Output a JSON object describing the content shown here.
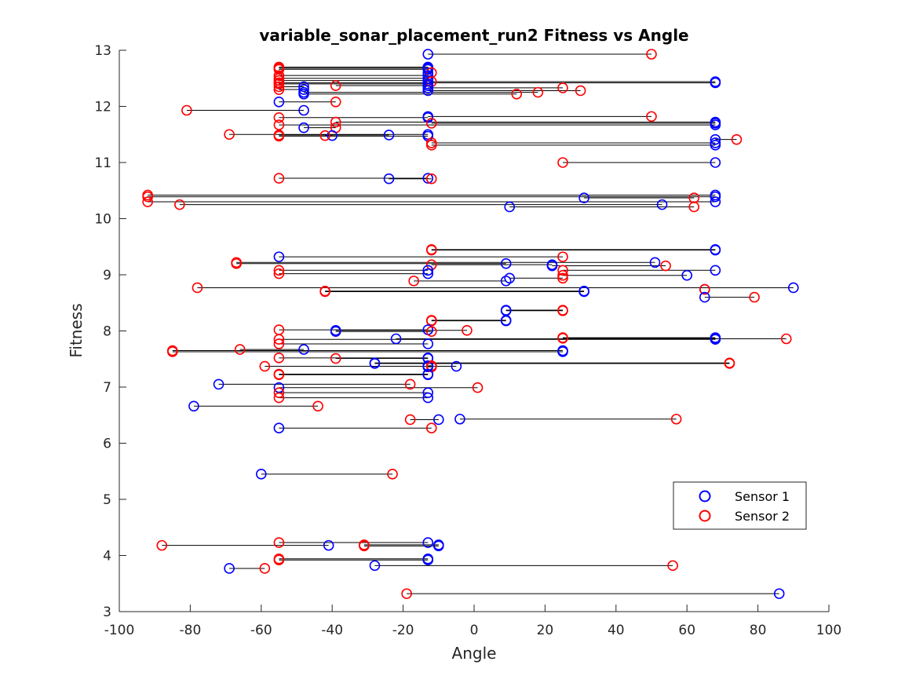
{
  "chart_data": {
    "type": "scatter",
    "title": "variable_sonar_placement_run2 Fitness vs Angle",
    "xlabel": "Angle",
    "ylabel": "Fitness",
    "xlim": [
      -100,
      100
    ],
    "ylim": [
      3,
      13
    ],
    "xticks": [
      "-100",
      "-80",
      "-60",
      "-40",
      "-20",
      "0",
      "20",
      "40",
      "60",
      "80",
      "100"
    ],
    "yticks": [
      "3",
      "4",
      "5",
      "6",
      "7",
      "8",
      "9",
      "10",
      "11",
      "12",
      "13"
    ],
    "legend_position": "lower-right",
    "grid": false,
    "series": [
      {
        "name": "Sensor 1",
        "color": "#0000ff"
      },
      {
        "name": "Sensor 2",
        "color": "#ff0000"
      }
    ],
    "pairs": [
      {
        "fitness": 12.93,
        "sensor1": -13,
        "sensor2": 50
      },
      {
        "fitness": 12.7,
        "sensor1": -13,
        "sensor2": -55
      },
      {
        "fitness": 12.68,
        "sensor1": -13,
        "sensor2": -55
      },
      {
        "fitness": 12.66,
        "sensor1": -13,
        "sensor2": -55
      },
      {
        "fitness": 12.6,
        "sensor1": -13,
        "sensor2": -12
      },
      {
        "fitness": 12.55,
        "sensor1": -13,
        "sensor2": -55
      },
      {
        "fitness": 12.5,
        "sensor1": -13,
        "sensor2": -55
      },
      {
        "fitness": 12.46,
        "sensor1": -13,
        "sensor2": -55
      },
      {
        "fitness": 12.44,
        "sensor1": 68,
        "sensor2": -12
      },
      {
        "fitness": 12.42,
        "sensor1": 68,
        "sensor2": -55
      },
      {
        "fitness": 12.4,
        "sensor1": -13,
        "sensor2": -55
      },
      {
        "fitness": 12.37,
        "sensor1": -13,
        "sensor2": -39
      },
      {
        "fitness": 12.35,
        "sensor1": -48,
        "sensor2": -55
      },
      {
        "fitness": 12.33,
        "sensor1": -13,
        "sensor2": 25
      },
      {
        "fitness": 12.3,
        "sensor1": -48,
        "sensor2": -55
      },
      {
        "fitness": 12.28,
        "sensor1": -13,
        "sensor2": 30
      },
      {
        "fitness": 12.25,
        "sensor1": -48,
        "sensor2": 18
      },
      {
        "fitness": 12.22,
        "sensor1": -48,
        "sensor2": 12
      },
      {
        "fitness": 12.08,
        "sensor1": -55,
        "sensor2": -39
      },
      {
        "fitness": 11.93,
        "sensor1": -48,
        "sensor2": -81
      },
      {
        "fitness": 11.82,
        "sensor1": -13,
        "sensor2": 50
      },
      {
        "fitness": 11.8,
        "sensor1": -13,
        "sensor2": -55
      },
      {
        "fitness": 11.72,
        "sensor1": 68,
        "sensor2": -39
      },
      {
        "fitness": 11.7,
        "sensor1": 68,
        "sensor2": -12
      },
      {
        "fitness": 11.67,
        "sensor1": 68,
        "sensor2": -55
      },
      {
        "fitness": 11.62,
        "sensor1": -48,
        "sensor2": -39
      },
      {
        "fitness": 11.5,
        "sensor1": -13,
        "sensor2": -69
      },
      {
        "fitness": 11.49,
        "sensor1": -24,
        "sensor2": -55
      },
      {
        "fitness": 11.48,
        "sensor1": -40,
        "sensor2": -42
      },
      {
        "fitness": 11.47,
        "sensor1": -13,
        "sensor2": -55
      },
      {
        "fitness": 11.41,
        "sensor1": 68,
        "sensor2": 74
      },
      {
        "fitness": 11.35,
        "sensor1": 68,
        "sensor2": -12
      },
      {
        "fitness": 11.31,
        "sensor1": 68,
        "sensor2": -12
      },
      {
        "fitness": 11.0,
        "sensor1": 68,
        "sensor2": 25
      },
      {
        "fitness": 10.72,
        "sensor1": -13,
        "sensor2": -55
      },
      {
        "fitness": 10.71,
        "sensor1": -24,
        "sensor2": -12
      },
      {
        "fitness": 10.42,
        "sensor1": 68,
        "sensor2": -92
      },
      {
        "fitness": 10.39,
        "sensor1": 68,
        "sensor2": -92
      },
      {
        "fitness": 10.37,
        "sensor1": 31,
        "sensor2": 62
      },
      {
        "fitness": 10.3,
        "sensor1": 68,
        "sensor2": -92
      },
      {
        "fitness": 10.25,
        "sensor1": 53,
        "sensor2": -83
      },
      {
        "fitness": 10.21,
        "sensor1": 10,
        "sensor2": 62
      },
      {
        "fitness": 9.45,
        "sensor1": 68,
        "sensor2": -12
      },
      {
        "fitness": 9.44,
        "sensor1": 68,
        "sensor2": -12
      },
      {
        "fitness": 9.32,
        "sensor1": -55,
        "sensor2": 25
      },
      {
        "fitness": 9.22,
        "sensor1": 51,
        "sensor2": -67
      },
      {
        "fitness": 9.2,
        "sensor1": 9,
        "sensor2": -67
      },
      {
        "fitness": 9.18,
        "sensor1": 22,
        "sensor2": -12
      },
      {
        "fitness": 9.16,
        "sensor1": 22,
        "sensor2": 54
      },
      {
        "fitness": 9.08,
        "sensor1": 68,
        "sensor2": 25
      },
      {
        "fitness": 9.08,
        "sensor1": -13,
        "sensor2": -55
      },
      {
        "fitness": 9.02,
        "sensor1": -13,
        "sensor2": -55
      },
      {
        "fitness": 8.99,
        "sensor1": 60,
        "sensor2": 25
      },
      {
        "fitness": 8.94,
        "sensor1": 10,
        "sensor2": 25
      },
      {
        "fitness": 8.89,
        "sensor1": 9,
        "sensor2": -17
      },
      {
        "fitness": 8.77,
        "sensor1": 90,
        "sensor2": -78
      },
      {
        "fitness": 8.74,
        "sensor1": 65,
        "sensor2": 65
      },
      {
        "fitness": 8.71,
        "sensor1": 31,
        "sensor2": -42
      },
      {
        "fitness": 8.7,
        "sensor1": 31,
        "sensor2": -42
      },
      {
        "fitness": 8.6,
        "sensor1": 65,
        "sensor2": 79
      },
      {
        "fitness": 8.37,
        "sensor1": 9,
        "sensor2": 25
      },
      {
        "fitness": 8.36,
        "sensor1": 9,
        "sensor2": 25
      },
      {
        "fitness": 8.19,
        "sensor1": 9,
        "sensor2": -12
      },
      {
        "fitness": 8.18,
        "sensor1": 9,
        "sensor2": -12
      },
      {
        "fitness": 8.02,
        "sensor1": -13,
        "sensor2": -55
      },
      {
        "fitness": 8.01,
        "sensor1": -39,
        "sensor2": -2
      },
      {
        "fitness": 7.99,
        "sensor1": -39,
        "sensor2": -12
      },
      {
        "fitness": 7.88,
        "sensor1": 68,
        "sensor2": 25
      },
      {
        "fitness": 7.87,
        "sensor1": 68,
        "sensor2": 25
      },
      {
        "fitness": 7.86,
        "sensor1": -22,
        "sensor2": 88
      },
      {
        "fitness": 7.85,
        "sensor1": 68,
        "sensor2": -55
      },
      {
        "fitness": 7.77,
        "sensor1": -13,
        "sensor2": -55
      },
      {
        "fitness": 7.67,
        "sensor1": -48,
        "sensor2": -66
      },
      {
        "fitness": 7.65,
        "sensor1": 25,
        "sensor2": -85
      },
      {
        "fitness": 7.63,
        "sensor1": 25,
        "sensor2": -85
      },
      {
        "fitness": 7.52,
        "sensor1": -13,
        "sensor2": -55
      },
      {
        "fitness": 7.51,
        "sensor1": -13,
        "sensor2": -39
      },
      {
        "fitness": 7.43,
        "sensor1": -28,
        "sensor2": 72
      },
      {
        "fitness": 7.42,
        "sensor1": -28,
        "sensor2": 72
      },
      {
        "fitness": 7.38,
        "sensor1": -13,
        "sensor2": -12
      },
      {
        "fitness": 7.37,
        "sensor1": -5,
        "sensor2": -59
      },
      {
        "fitness": 7.36,
        "sensor1": -13,
        "sensor2": -12
      },
      {
        "fitness": 7.23,
        "sensor1": -13,
        "sensor2": -55
      },
      {
        "fitness": 7.22,
        "sensor1": -13,
        "sensor2": -55
      },
      {
        "fitness": 7.05,
        "sensor1": -72,
        "sensor2": -18
      },
      {
        "fitness": 6.99,
        "sensor1": -55,
        "sensor2": 1
      },
      {
        "fitness": 6.9,
        "sensor1": -13,
        "sensor2": -55
      },
      {
        "fitness": 6.81,
        "sensor1": -13,
        "sensor2": -55
      },
      {
        "fitness": 6.66,
        "sensor1": -79,
        "sensor2": -44
      },
      {
        "fitness": 6.43,
        "sensor1": -4,
        "sensor2": 57
      },
      {
        "fitness": 6.42,
        "sensor1": -10,
        "sensor2": -18
      },
      {
        "fitness": 6.27,
        "sensor1": -55,
        "sensor2": -12
      },
      {
        "fitness": 5.45,
        "sensor1": -60,
        "sensor2": -23
      },
      {
        "fitness": 4.23,
        "sensor1": -13,
        "sensor2": -55
      },
      {
        "fitness": 4.19,
        "sensor1": -10,
        "sensor2": -31
      },
      {
        "fitness": 4.18,
        "sensor1": -41,
        "sensor2": -88
      },
      {
        "fitness": 4.17,
        "sensor1": -10,
        "sensor2": -31
      },
      {
        "fitness": 3.94,
        "sensor1": -13,
        "sensor2": -55
      },
      {
        "fitness": 3.92,
        "sensor1": -13,
        "sensor2": -55
      },
      {
        "fitness": 3.82,
        "sensor1": -28,
        "sensor2": 56
      },
      {
        "fitness": 3.77,
        "sensor1": -69,
        "sensor2": -59
      },
      {
        "fitness": 3.32,
        "sensor1": 86,
        "sensor2": -19
      }
    ]
  }
}
